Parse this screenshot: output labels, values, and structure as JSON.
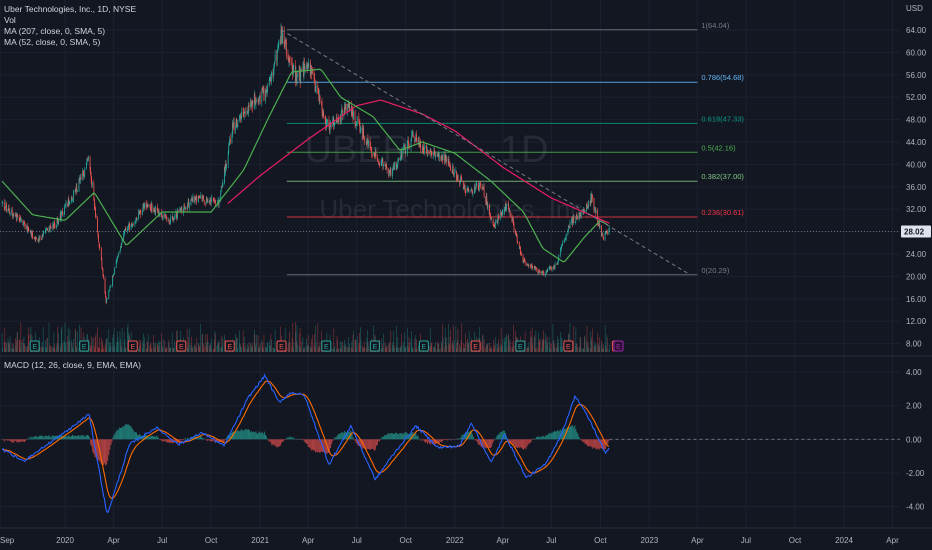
{
  "header": {
    "title": "Uber Technologies, Inc., 1D, NYSE",
    "volume_label": "Vol",
    "ma_long_label": "MA (207, close, 0, SMA, 5)",
    "ma_short_label": "MA (52, close, 0, SMA, 5)"
  },
  "macd_label": "MACD (12, 26, close, 9, EMA, EMA)",
  "watermark": {
    "symbol": "UBER",
    "interval": "1D",
    "name": "Uber Technologies, Inc."
  },
  "currency_label": "USD",
  "last_price_label": "28.02",
  "colors": {
    "background": "#131722",
    "up": "#26a69a",
    "down": "#ef5350",
    "ma_short": "#4caf50",
    "ma_long": "#e91e63",
    "macd_line": "#2962ff",
    "signal_line": "#ff6d00",
    "last_price_badge": "#131722",
    "fib_0": "#787b86",
    "fib_0236": "#f23645",
    "fib_0382": "#81c784",
    "fib_05": "#4caf50",
    "fib_0618": "#089981",
    "fib_0786": "#64b5f6",
    "fib_1": "#787b86"
  },
  "chart_data": [
    {
      "type": "candlestick",
      "title": "Uber Technologies, Inc., 1D, NYSE",
      "x_ticks": [
        "Sep",
        "2020",
        "Apr",
        "Jul",
        "Oct",
        "2021",
        "Apr",
        "Jul",
        "Oct",
        "2022",
        "Apr",
        "Jul",
        "Oct",
        "2023",
        "Apr",
        "Jul",
        "Oct",
        "2024",
        "Apr"
      ],
      "y_ticks": [
        "8.00",
        "12.00",
        "16.00",
        "20.00",
        "24.00",
        "28.00",
        "32.00",
        "36.00",
        "40.00",
        "44.00",
        "48.00",
        "52.00",
        "56.00",
        "60.00",
        "64.00"
      ],
      "ylim": [
        6.5,
        66.5
      ],
      "price_path": [
        {
          "date": "2019-09-05",
          "price": 33.0
        },
        {
          "date": "2019-10-10",
          "price": 30.0
        },
        {
          "date": "2019-11-10",
          "price": 26.5
        },
        {
          "date": "2019-12-15",
          "price": 29.5
        },
        {
          "date": "2020-01-20",
          "price": 35.0
        },
        {
          "date": "2020-02-15",
          "price": 41.0
        },
        {
          "date": "2020-03-18",
          "price": 15.5
        },
        {
          "date": "2020-04-20",
          "price": 27.5
        },
        {
          "date": "2020-06-01",
          "price": 33.0
        },
        {
          "date": "2020-07-15",
          "price": 30.0
        },
        {
          "date": "2020-09-01",
          "price": 34.0
        },
        {
          "date": "2020-10-15",
          "price": 33.0
        },
        {
          "date": "2020-11-10",
          "price": 46.5
        },
        {
          "date": "2020-12-15",
          "price": 51.0
        },
        {
          "date": "2021-01-15",
          "price": 53.0
        },
        {
          "date": "2021-02-10",
          "price": 63.2
        },
        {
          "date": "2021-03-10",
          "price": 55.0
        },
        {
          "date": "2021-04-01",
          "price": 58.0
        },
        {
          "date": "2021-05-10",
          "price": 46.0
        },
        {
          "date": "2021-06-15",
          "price": 50.5
        },
        {
          "date": "2021-08-01",
          "price": 42.0
        },
        {
          "date": "2021-09-01",
          "price": 38.5
        },
        {
          "date": "2021-10-15",
          "price": 45.0
        },
        {
          "date": "2021-11-15",
          "price": 42.0
        },
        {
          "date": "2021-12-15",
          "price": 41.0
        },
        {
          "date": "2022-01-25",
          "price": 35.0
        },
        {
          "date": "2022-02-20",
          "price": 36.5
        },
        {
          "date": "2022-03-15",
          "price": 29.0
        },
        {
          "date": "2022-04-10",
          "price": 33.0
        },
        {
          "date": "2022-05-10",
          "price": 22.5
        },
        {
          "date": "2022-06-15",
          "price": 20.5
        },
        {
          "date": "2022-07-10",
          "price": 22.0
        },
        {
          "date": "2022-08-05",
          "price": 29.5
        },
        {
          "date": "2022-08-25",
          "price": 31.0
        },
        {
          "date": "2022-09-15",
          "price": 34.0
        },
        {
          "date": "2022-10-05",
          "price": 27.0
        },
        {
          "date": "2022-10-18",
          "price": 28.02
        }
      ],
      "ma_52_path": [
        {
          "date": "2019-09-05",
          "price": 37.0
        },
        {
          "date": "2019-11-01",
          "price": 31.0
        },
        {
          "date": "2020-01-01",
          "price": 30.0
        },
        {
          "date": "2020-02-25",
          "price": 35.0
        },
        {
          "date": "2020-04-25",
          "price": 25.5
        },
        {
          "date": "2020-07-01",
          "price": 31.5
        },
        {
          "date": "2020-10-01",
          "price": 31.5
        },
        {
          "date": "2020-12-01",
          "price": 39.0
        },
        {
          "date": "2021-01-20",
          "price": 49.0
        },
        {
          "date": "2021-03-01",
          "price": 56.5
        },
        {
          "date": "2021-04-25",
          "price": 57.0
        },
        {
          "date": "2021-06-01",
          "price": 52.0
        },
        {
          "date": "2021-08-01",
          "price": 48.5
        },
        {
          "date": "2021-09-20",
          "price": 42.5
        },
        {
          "date": "2021-11-01",
          "price": 44.0
        },
        {
          "date": "2022-01-01",
          "price": 42.0
        },
        {
          "date": "2022-03-10",
          "price": 37.0
        },
        {
          "date": "2022-05-10",
          "price": 31.5
        },
        {
          "date": "2022-06-15",
          "price": 25.0
        },
        {
          "date": "2022-07-25",
          "price": 22.5
        },
        {
          "date": "2022-09-01",
          "price": 27.0
        },
        {
          "date": "2022-10-01",
          "price": 30.0
        },
        {
          "date": "2022-10-18",
          "price": 29.0
        }
      ],
      "ma_207_path": [
        {
          "date": "2020-11-01",
          "price": 33.0
        },
        {
          "date": "2021-01-01",
          "price": 38.0
        },
        {
          "date": "2021-04-01",
          "price": 44.5
        },
        {
          "date": "2021-07-01",
          "price": 50.5
        },
        {
          "date": "2021-08-15",
          "price": 51.5
        },
        {
          "date": "2021-11-01",
          "price": 49.0
        },
        {
          "date": "2022-01-01",
          "price": 46.0
        },
        {
          "date": "2022-04-01",
          "price": 39.5
        },
        {
          "date": "2022-07-01",
          "price": 34.0
        },
        {
          "date": "2022-10-18",
          "price": 29.5
        }
      ],
      "trendline": {
        "start": {
          "date": "2021-02-10",
          "price": 64.0
        },
        "end": {
          "date": "2023-03-15",
          "price": 20.5
        }
      },
      "fibonacci": [
        {
          "label": "1(64.04)",
          "price": 64.04,
          "color_key": "fib_1"
        },
        {
          "label": "0.786(54.68)",
          "price": 54.68,
          "color_key": "fib_0786"
        },
        {
          "label": "0.618(47.33)",
          "price": 47.33,
          "color_key": "fib_0618"
        },
        {
          "label": "0.5(42.16)",
          "price": 42.16,
          "color_key": "fib_05"
        },
        {
          "label": "0.382(37.00)",
          "price": 37.0,
          "color_key": "fib_0382"
        },
        {
          "label": "0.236(30.61)",
          "price": 30.61,
          "color_key": "fib_0236"
        },
        {
          "label": "0(20.29)",
          "price": 20.29,
          "color_key": "fib_0"
        }
      ],
      "fib_start_date": "2021-02-20",
      "fib_end_date": "2023-04-01",
      "last_price": 28.02,
      "earnings_dates": [
        {
          "date": "2019-11-05",
          "kind": "E",
          "result": "beat"
        },
        {
          "date": "2020-02-06",
          "kind": "E",
          "result": "beat"
        },
        {
          "date": "2020-05-07",
          "kind": "E",
          "result": "miss"
        },
        {
          "date": "2020-08-06",
          "kind": "E",
          "result": "miss"
        },
        {
          "date": "2020-11-05",
          "kind": "E",
          "result": "miss"
        },
        {
          "date": "2021-02-10",
          "kind": "E",
          "result": "miss"
        },
        {
          "date": "2021-05-05",
          "kind": "E",
          "result": "beat"
        },
        {
          "date": "2021-08-04",
          "kind": "E",
          "result": "beat"
        },
        {
          "date": "2021-11-04",
          "kind": "E",
          "result": "beat"
        },
        {
          "date": "2022-02-09",
          "kind": "E",
          "result": "miss"
        },
        {
          "date": "2022-05-04",
          "kind": "E",
          "result": "beat"
        },
        {
          "date": "2022-08-02",
          "kind": "E",
          "result": "miss"
        },
        {
          "date": "2022-11-01",
          "kind": "E",
          "result": "miss"
        },
        {
          "date": "2022-11-04",
          "kind": "E",
          "result": "upcoming"
        }
      ]
    },
    {
      "type": "line",
      "title": "MACD (12, 26, close, 9, EMA, EMA)",
      "y_ticks": [
        "-4.00",
        "-2.00",
        "0.00",
        "2.00",
        "4.00"
      ],
      "ylim": [
        -4.8,
        4.6
      ],
      "macd_path": [
        {
          "date": "2019-09-05",
          "value": -0.6
        },
        {
          "date": "2019-10-15",
          "value": -1.3
        },
        {
          "date": "2019-11-20",
          "value": -0.5
        },
        {
          "date": "2020-01-05",
          "value": 0.5
        },
        {
          "date": "2020-02-15",
          "value": 1.5
        },
        {
          "date": "2020-03-20",
          "value": -4.5
        },
        {
          "date": "2020-05-01",
          "value": -0.3
        },
        {
          "date": "2020-06-20",
          "value": 0.7
        },
        {
          "date": "2020-08-01",
          "value": -0.3
        },
        {
          "date": "2020-09-15",
          "value": 0.4
        },
        {
          "date": "2020-10-25",
          "value": -0.4
        },
        {
          "date": "2020-12-10",
          "value": 2.5
        },
        {
          "date": "2021-01-10",
          "value": 3.8
        },
        {
          "date": "2021-02-05",
          "value": 2.2
        },
        {
          "date": "2021-03-01",
          "value": 2.8
        },
        {
          "date": "2021-03-25",
          "value": 2.6
        },
        {
          "date": "2021-05-10",
          "value": -1.5
        },
        {
          "date": "2021-06-20",
          "value": 0.8
        },
        {
          "date": "2021-08-05",
          "value": -2.4
        },
        {
          "date": "2021-09-05",
          "value": -1.0
        },
        {
          "date": "2021-10-20",
          "value": 0.8
        },
        {
          "date": "2021-12-01",
          "value": -0.5
        },
        {
          "date": "2022-01-10",
          "value": -0.4
        },
        {
          "date": "2022-02-01",
          "value": 1.0
        },
        {
          "date": "2022-03-10",
          "value": -1.4
        },
        {
          "date": "2022-04-05",
          "value": 0.3
        },
        {
          "date": "2022-05-15",
          "value": -2.3
        },
        {
          "date": "2022-06-20",
          "value": -1.5
        },
        {
          "date": "2022-07-20",
          "value": 0.3
        },
        {
          "date": "2022-08-15",
          "value": 2.6
        },
        {
          "date": "2022-09-10",
          "value": 1.2
        },
        {
          "date": "2022-10-10",
          "value": -0.8
        },
        {
          "date": "2022-10-18",
          "value": -0.5
        }
      ]
    }
  ]
}
